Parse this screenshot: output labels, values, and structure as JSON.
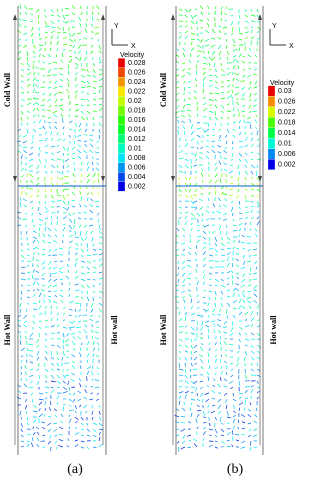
{
  "panels": [
    {
      "label": "(a)",
      "walls": {
        "cold_left": "Cold Wall",
        "hot_left": "Hot Wall",
        "hot_right": "Hot wall"
      },
      "axes": {
        "y": "Y",
        "x": "X"
      },
      "legend": {
        "title": "Velocity",
        "ticks": [
          0.028,
          0.026,
          0.024,
          0.022,
          0.02,
          0.018,
          0.016,
          0.014,
          0.012,
          0.01,
          0.008,
          0.006,
          0.004,
          0.002
        ]
      }
    },
    {
      "label": "(b)",
      "walls": {
        "cold_left": "Cold Wall",
        "hot_left": "Hot Wall",
        "hot_right": "Hot wall"
      },
      "axes": {
        "y": "Y",
        "x": "X"
      },
      "legend": {
        "title": "Velocity",
        "ticks": [
          0.03,
          0.026,
          0.022,
          0.018,
          0.014,
          0.01,
          0.006,
          0.002
        ]
      }
    }
  ]
}
